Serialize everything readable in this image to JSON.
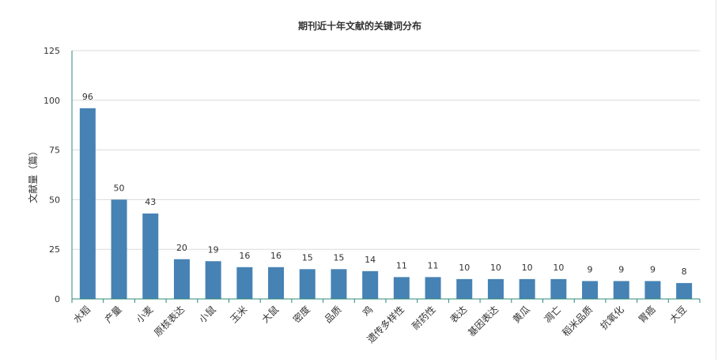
{
  "chart_data": {
    "type": "bar",
    "title": "期刊近十年文献的关键词分布",
    "xlabel": "",
    "ylabel": "文献量（篇）",
    "ylim": [
      0,
      125
    ],
    "yticks": [
      0,
      25,
      50,
      75,
      100,
      125
    ],
    "grid": true,
    "legend": "none",
    "categories": [
      "水稻",
      "产量",
      "小麦",
      "原核表达",
      "小鼠",
      "玉米",
      "大鼠",
      "密度",
      "品质",
      "鸡",
      "遗传多样性",
      "耐药性",
      "表达",
      "基因表达",
      "黄瓜",
      "凋亡",
      "稻米品质",
      "抗氧化",
      "胃癌",
      "大豆"
    ],
    "values": [
      96,
      50,
      43,
      20,
      19,
      16,
      16,
      15,
      15,
      14,
      11,
      11,
      10,
      10,
      10,
      10,
      9,
      9,
      9,
      8
    ],
    "colors": {
      "bar": "#4682b4",
      "axis": "#2e8b7a",
      "grid": "#dcdcdc",
      "text": "#333333"
    }
  }
}
